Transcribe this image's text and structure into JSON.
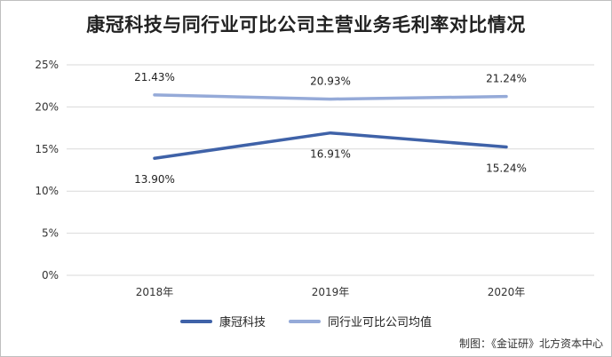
{
  "title": "康冠科技与同行业可比公司主营业务毛利率对比情况",
  "source": "制图：《金证研》北方资本中心",
  "colors": {
    "series1": "#3f62a8",
    "series2": "#95aad8",
    "grid": "#d9d9d9",
    "axis_text": "#333333"
  },
  "chart_data": {
    "type": "line",
    "categories": [
      "2018年",
      "2019年",
      "2020年"
    ],
    "series": [
      {
        "name": "康冠科技",
        "values": [
          13.9,
          16.91,
          15.24
        ],
        "labels": [
          "13.90%",
          "16.91%",
          "15.24%"
        ],
        "label_position": "below"
      },
      {
        "name": "同行业可比公司均值",
        "values": [
          21.43,
          20.93,
          21.24
        ],
        "labels": [
          "21.43%",
          "20.93%",
          "21.24%"
        ],
        "label_position": "above"
      }
    ],
    "ylim": [
      0,
      25
    ],
    "yticks": [
      0,
      5,
      10,
      15,
      20,
      25
    ],
    "ytick_labels": [
      "0%",
      "5%",
      "10%",
      "15%",
      "20%",
      "25%"
    ],
    "grid": true,
    "legend_position": "bottom"
  }
}
